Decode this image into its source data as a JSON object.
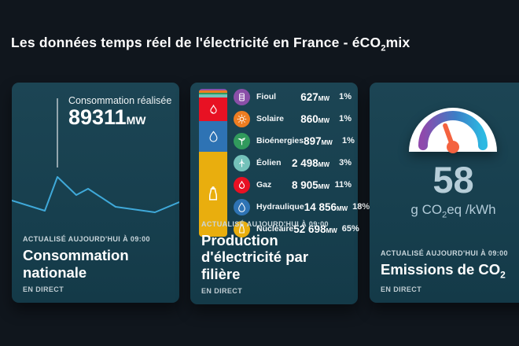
{
  "page": {
    "title_part1": "Les données temps réel de l'électricité en France - éCO",
    "title_sub": "2",
    "title_part2": "mix"
  },
  "cards": {
    "consumption": {
      "tooltip_label": "Consommation réalisée",
      "value": "89311",
      "unit": "MW",
      "updated": "ACTUALISÉ AUJOURD'HUI À 09:00",
      "title": "Consommation nationale",
      "live": "EN DIRECT",
      "line_color": "#3fa9d9",
      "sparkline_points": [
        [
          0,
          150
        ],
        [
          42,
          163
        ],
        [
          58,
          120
        ],
        [
          82,
          143
        ],
        [
          97,
          135
        ],
        [
          132,
          158
        ],
        [
          182,
          165
        ],
        [
          213,
          152
        ]
      ]
    },
    "production": {
      "updated": "ACTUALISÉ AUJOURD'HUI À 09:00",
      "title": "Production d'électricité par filière",
      "live": "EN DIRECT",
      "unit": "MW",
      "rows": [
        {
          "label": "Fioul",
          "value": "627",
          "percent": "1%",
          "pct": 1,
          "color": "#8a4fa8",
          "icon": "barrel-icon"
        },
        {
          "label": "Solaire",
          "value": "860",
          "percent": "1%",
          "pct": 1,
          "color": "#ed7d21",
          "icon": "sun-icon"
        },
        {
          "label": "Bioénergies",
          "value": "897",
          "percent": "1%",
          "pct": 1,
          "color": "#319a5d",
          "icon": "plant-icon"
        },
        {
          "label": "Éolien",
          "value": "2 498",
          "percent": "3%",
          "pct": 3,
          "color": "#74c2ba",
          "icon": "wind-turbine-icon"
        },
        {
          "label": "Gaz",
          "value": "8 905",
          "percent": "11%",
          "pct": 11,
          "color": "#e81123",
          "icon": "flame-icon"
        },
        {
          "label": "Hydraulique",
          "value": "14 856",
          "percent": "18%",
          "pct": 18,
          "color": "#2e73b4",
          "icon": "drop-icon"
        },
        {
          "label": "Nucléaire",
          "value": "52 698",
          "percent": "65%",
          "pct": 65,
          "color": "#e9ae0e",
          "icon": "nuclear-plant-icon"
        }
      ]
    },
    "emissions": {
      "value": "58",
      "unit_part1": "g CO",
      "unit_sub": "2",
      "unit_part2": "eq /kWh",
      "updated": "ACTUALISÉ AUJOURD'HUI À 09:00",
      "title_part1": "Emissions de CO",
      "title_sub": "2",
      "live": "EN DIRECT",
      "gauge_colors": [
        "#8f49ac",
        "#3c7ec6",
        "#2cb9e2"
      ],
      "needle_color": "#f4623f"
    }
  },
  "chart_data": [
    {
      "type": "line",
      "title": "Consommation réalisée",
      "ylabel": "MW",
      "current_value_mw": 89311,
      "note": "unlabeled intraday sparkline, cursor on morning peak"
    },
    {
      "type": "bar",
      "title": "Production d'électricité par filière",
      "categories": [
        "Fioul",
        "Solaire",
        "Bioénergies",
        "Éolien",
        "Gaz",
        "Hydraulique",
        "Nucléaire"
      ],
      "values": [
        627,
        860,
        897,
        2498,
        8905,
        14856,
        52698
      ],
      "percentages": [
        1,
        1,
        1,
        3,
        11,
        18,
        65
      ],
      "ylabel": "MW"
    },
    {
      "type": "gauge",
      "title": "Emissions de CO2",
      "value": 58,
      "unit": "g CO2eq /kWh"
    }
  ]
}
